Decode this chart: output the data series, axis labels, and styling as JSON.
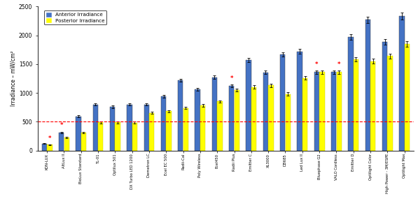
{
  "categories": [
    "KON-LUX",
    "AltLux II",
    "BioLux Standard",
    "TL-01",
    "Optilux 501",
    "DX Turbo LED 1200",
    "Demetron LC",
    "Ecel EC 500",
    "Radii-Cal",
    "Poly Wireless",
    "Ecel450",
    "Radii Plus",
    "Emitter C",
    "XL3000",
    "DB685",
    "Led Lux II",
    "Bluephase G2",
    "VALO Cordless",
    "Emitter D",
    "Optilight Color",
    "High Power - 3M/ESPE",
    "Optilight Max"
  ],
  "anterior": [
    120,
    310,
    590,
    800,
    760,
    800,
    800,
    940,
    1220,
    1060,
    1270,
    1120,
    1570,
    1355,
    1670,
    1720,
    1360,
    1360,
    1970,
    2270,
    1880,
    2330
  ],
  "posterior": [
    100,
    230,
    310,
    490,
    490,
    480,
    650,
    680,
    740,
    780,
    850,
    1050,
    1100,
    1130,
    980,
    1260,
    1360,
    1360,
    1580,
    1550,
    1640,
    1850
  ],
  "anterior_err": [
    8,
    18,
    18,
    22,
    22,
    22,
    22,
    22,
    28,
    28,
    28,
    28,
    38,
    32,
    38,
    42,
    28,
    28,
    48,
    52,
    48,
    58
  ],
  "posterior_err": [
    8,
    13,
    13,
    18,
    18,
    18,
    18,
    18,
    22,
    22,
    22,
    28,
    28,
    28,
    28,
    32,
    28,
    28,
    38,
    42,
    42,
    48
  ],
  "star_anterior": [
    0,
    1,
    0,
    0,
    0,
    0,
    0,
    0,
    0,
    0,
    0,
    1,
    0,
    0,
    0,
    0,
    1,
    0,
    0,
    0,
    0,
    0
  ],
  "star_posterior": [
    1,
    0,
    0,
    0,
    0,
    0,
    0,
    0,
    0,
    0,
    0,
    0,
    0,
    0,
    0,
    0,
    0,
    1,
    0,
    0,
    0,
    0
  ],
  "blue_color": "#4472C4",
  "yellow_color": "#FFFF00",
  "yellow_edge": "#CCCC00",
  "dashed_line_y": 500,
  "ylim": [
    0,
    2500
  ],
  "yticks": [
    0,
    500,
    1000,
    1500,
    2000,
    2500
  ],
  "ylabel": "Irradiance – mW/cm²",
  "legend_anterior": "Anterior Irradiance",
  "legend_posterior": "Posterior Irradiance"
}
